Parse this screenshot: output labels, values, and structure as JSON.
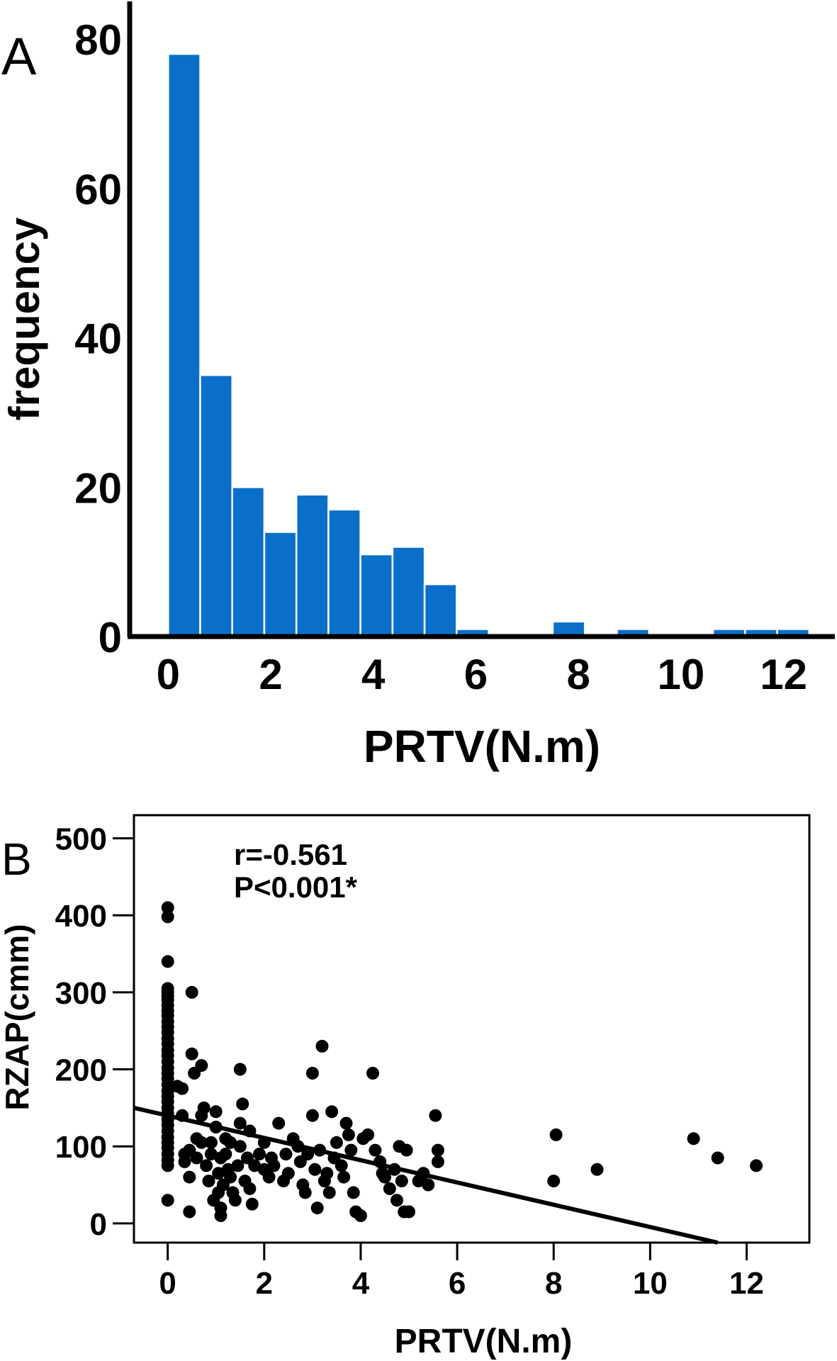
{
  "chart_data": [
    {
      "type": "bar",
      "panel_label": "A",
      "xlabel": "PRTV(N.m)",
      "ylabel": "frequency",
      "xlim": [
        -0.75,
        13
      ],
      "ylim": [
        0,
        80
      ],
      "x_ticks": [
        "0",
        "2",
        "4",
        "6",
        "8",
        "10",
        "12"
      ],
      "y_ticks": [
        "0",
        "20",
        "40",
        "60",
        "80"
      ],
      "bar_color": "#0a6fc9",
      "bin_width": 0.625,
      "bin_starts": [
        0,
        0.625,
        1.25,
        1.875,
        2.5,
        3.125,
        3.75,
        4.375,
        5.0,
        5.625,
        6.25,
        6.875,
        7.5,
        8.125,
        8.75,
        9.375,
        10.0,
        10.625,
        11.25,
        11.875
      ],
      "values": [
        78,
        35,
        20,
        14,
        19,
        17,
        11,
        12,
        7,
        1,
        0,
        0,
        2,
        0,
        1,
        0,
        0,
        1,
        1,
        1
      ]
    },
    {
      "type": "scatter",
      "panel_label": "B",
      "xlabel": "PRTV(N.m)",
      "ylabel": "RZAP(cmm)",
      "xlim": [
        -0.7,
        13.3
      ],
      "ylim": [
        -25,
        530
      ],
      "x_ticks": [
        "0",
        "2",
        "4",
        "6",
        "8",
        "10",
        "12"
      ],
      "y_ticks": [
        "0",
        "100",
        "200",
        "300",
        "400",
        "500"
      ],
      "annotation": [
        "r=-0.561",
        "P<0.001*"
      ],
      "point_color": "#000000",
      "fit_line": {
        "x": [
          -0.7,
          11.4
        ],
        "y": [
          150,
          -25
        ]
      },
      "points": [
        [
          0,
          410
        ],
        [
          0,
          398
        ],
        [
          0,
          340
        ],
        [
          0,
          305
        ],
        [
          0,
          300
        ],
        [
          0,
          295
        ],
        [
          0,
          290
        ],
        [
          0,
          283
        ],
        [
          0,
          276
        ],
        [
          0,
          270
        ],
        [
          0,
          262
        ],
        [
          0,
          255
        ],
        [
          0,
          248
        ],
        [
          0,
          240
        ],
        [
          0,
          233
        ],
        [
          0,
          225
        ],
        [
          0,
          218
        ],
        [
          0,
          210
        ],
        [
          0,
          202
        ],
        [
          0,
          195
        ],
        [
          0,
          188
        ],
        [
          0,
          180
        ],
        [
          0,
          172
        ],
        [
          0,
          165
        ],
        [
          0,
          158
        ],
        [
          0,
          150
        ],
        [
          0,
          143
        ],
        [
          0,
          135
        ],
        [
          0,
          128
        ],
        [
          0,
          120
        ],
        [
          0,
          112
        ],
        [
          0,
          105
        ],
        [
          0,
          98
        ],
        [
          0,
          90
        ],
        [
          0,
          82
        ],
        [
          0,
          75
        ],
        [
          0,
          30
        ],
        [
          0.2,
          178
        ],
        [
          0.3,
          175
        ],
        [
          0.3,
          140
        ],
        [
          0.35,
          90
        ],
        [
          0.35,
          80
        ],
        [
          0.45,
          95
        ],
        [
          0.5,
          300
        ],
        [
          0.45,
          60
        ],
        [
          0.45,
          15
        ],
        [
          0.5,
          220
        ],
        [
          0.55,
          195
        ],
        [
          0.6,
          110
        ],
        [
          0.6,
          85
        ],
        [
          0.7,
          205
        ],
        [
          0.7,
          140
        ],
        [
          0.7,
          105
        ],
        [
          0.75,
          150
        ],
        [
          0.8,
          75
        ],
        [
          0.85,
          55
        ],
        [
          0.9,
          105
        ],
        [
          0.9,
          90
        ],
        [
          0.95,
          30
        ],
        [
          1.0,
          125
        ],
        [
          1.0,
          145
        ],
        [
          1.05,
          65
        ],
        [
          1.05,
          40
        ],
        [
          1.1,
          85
        ],
        [
          1.1,
          20
        ],
        [
          1.1,
          10
        ],
        [
          1.15,
          50
        ],
        [
          1.2,
          110
        ],
        [
          1.2,
          90
        ],
        [
          1.25,
          70
        ],
        [
          1.3,
          105
        ],
        [
          1.3,
          60
        ],
        [
          1.35,
          40
        ],
        [
          1.4,
          30
        ],
        [
          1.45,
          75
        ],
        [
          1.5,
          130
        ],
        [
          1.5,
          100
        ],
        [
          1.5,
          200
        ],
        [
          1.55,
          155
        ],
        [
          1.6,
          55
        ],
        [
          1.65,
          85
        ],
        [
          1.7,
          120
        ],
        [
          1.7,
          45
        ],
        [
          1.75,
          25
        ],
        [
          1.8,
          75
        ],
        [
          1.9,
          90
        ],
        [
          2.0,
          70
        ],
        [
          2.0,
          105
        ],
        [
          2.1,
          60
        ],
        [
          2.15,
          85
        ],
        [
          2.2,
          75
        ],
        [
          2.3,
          130
        ],
        [
          2.4,
          55
        ],
        [
          2.45,
          90
        ],
        [
          2.5,
          65
        ],
        [
          2.6,
          110
        ],
        [
          2.7,
          100
        ],
        [
          2.75,
          80
        ],
        [
          2.8,
          50
        ],
        [
          2.85,
          40
        ],
        [
          2.9,
          90
        ],
        [
          3.0,
          195
        ],
        [
          3.0,
          140
        ],
        [
          3.05,
          70
        ],
        [
          3.1,
          20
        ],
        [
          3.15,
          95
        ],
        [
          3.2,
          230
        ],
        [
          3.25,
          55
        ],
        [
          3.3,
          65
        ],
        [
          3.35,
          40
        ],
        [
          3.4,
          145
        ],
        [
          3.45,
          85
        ],
        [
          3.5,
          105
        ],
        [
          3.6,
          75
        ],
        [
          3.65,
          60
        ],
        [
          3.7,
          130
        ],
        [
          3.75,
          115
        ],
        [
          3.8,
          95
        ],
        [
          3.85,
          40
        ],
        [
          3.9,
          15
        ],
        [
          4.0,
          10
        ],
        [
          4.05,
          110
        ],
        [
          4.15,
          115
        ],
        [
          4.25,
          195
        ],
        [
          4.3,
          95
        ],
        [
          4.4,
          80
        ],
        [
          4.45,
          65
        ],
        [
          4.5,
          60
        ],
        [
          4.6,
          45
        ],
        [
          4.7,
          70
        ],
        [
          4.75,
          30
        ],
        [
          4.8,
          100
        ],
        [
          4.85,
          55
        ],
        [
          4.9,
          15
        ],
        [
          4.95,
          95
        ],
        [
          5.0,
          15
        ],
        [
          5.2,
          55
        ],
        [
          5.3,
          65
        ],
        [
          5.4,
          50
        ],
        [
          5.55,
          140
        ],
        [
          5.6,
          95
        ],
        [
          5.6,
          80
        ],
        [
          8.0,
          55
        ],
        [
          8.05,
          115
        ],
        [
          8.9,
          70
        ],
        [
          10.9,
          110
        ],
        [
          11.4,
          85
        ],
        [
          12.2,
          75
        ]
      ]
    }
  ]
}
